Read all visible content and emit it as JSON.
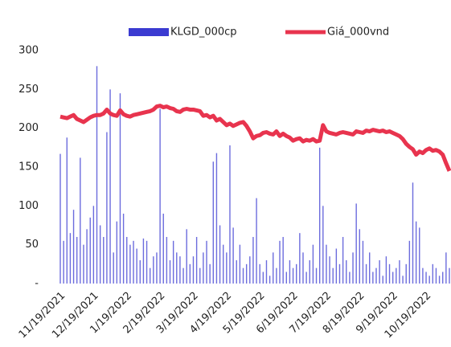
{
  "chart_data": {
    "type": "bar+line",
    "categories": [
      "11/19/2021",
      null,
      null,
      null,
      null,
      null,
      null,
      null,
      null,
      null,
      "12/19/2021",
      null,
      null,
      null,
      null,
      null,
      null,
      null,
      null,
      null,
      "1/19/2022",
      null,
      null,
      null,
      null,
      null,
      null,
      null,
      null,
      null,
      "2/19/2022",
      null,
      null,
      null,
      null,
      null,
      null,
      null,
      null,
      null,
      "3/19/2022",
      null,
      null,
      null,
      null,
      null,
      null,
      null,
      null,
      null,
      "4/19/2022",
      null,
      null,
      null,
      null,
      null,
      null,
      null,
      null,
      null,
      "5/19/2022",
      null,
      null,
      null,
      null,
      null,
      null,
      null,
      null,
      null,
      "6/19/2022",
      null,
      null,
      null,
      null,
      null,
      null,
      null,
      null,
      null,
      "7/19/2022",
      null,
      null,
      null,
      null,
      null,
      null,
      null,
      null,
      null,
      "8/19/2022",
      null,
      null,
      null,
      null,
      null,
      null,
      null,
      null,
      null,
      "9/19/2022",
      null,
      null,
      null,
      null,
      null,
      null,
      null,
      null,
      null,
      "10/19/2022",
      null,
      null,
      null,
      null,
      null,
      null,
      null
    ],
    "series": [
      {
        "name": "KLGD_000cp",
        "type": "bar",
        "color": "#3b3bd1",
        "values": [
          167,
          55,
          188,
          65,
          95,
          60,
          162,
          50,
          70,
          85,
          100,
          280,
          75,
          60,
          195,
          250,
          40,
          80,
          245,
          90,
          60,
          50,
          55,
          45,
          30,
          58,
          55,
          20,
          35,
          40,
          225,
          90,
          60,
          30,
          55,
          40,
          35,
          20,
          70,
          25,
          35,
          60,
          20,
          40,
          55,
          25,
          157,
          168,
          75,
          50,
          40,
          178,
          72,
          30,
          50,
          20,
          25,
          35,
          60,
          110,
          25,
          15,
          30,
          10,
          40,
          20,
          55,
          60,
          15,
          30,
          20,
          25,
          65,
          40,
          15,
          30,
          50,
          20,
          175,
          100,
          50,
          35,
          20,
          45,
          25,
          60,
          30,
          15,
          40,
          103,
          70,
          55,
          25,
          40,
          15,
          20,
          30,
          10,
          35,
          25,
          15,
          20,
          30,
          10,
          25,
          55,
          130,
          80,
          72,
          20,
          15,
          10,
          25,
          20,
          10,
          15,
          40,
          20
        ]
      },
      {
        "name": "Giá_000vnd",
        "type": "line",
        "color": "#e8344e",
        "values": [
          215,
          214,
          213,
          215,
          217,
          212,
          210,
          208,
          211,
          214,
          216,
          217,
          217,
          219,
          224,
          219,
          217,
          216,
          223,
          218,
          216,
          215,
          217,
          218,
          219,
          220,
          221,
          222,
          224,
          228,
          229,
          227,
          228,
          226,
          225,
          222,
          221,
          224,
          225,
          224,
          224,
          223,
          222,
          216,
          217,
          214,
          216,
          210,
          212,
          208,
          204,
          206,
          203,
          205,
          207,
          208,
          203,
          196,
          187,
          190,
          191,
          194,
          195,
          193,
          192,
          196,
          190,
          193,
          190,
          188,
          184,
          186,
          187,
          183,
          185,
          184,
          186,
          183,
          184,
          204,
          196,
          194,
          193,
          192,
          194,
          195,
          194,
          193,
          192,
          196,
          195,
          194,
          197,
          196,
          198,
          197,
          196,
          197,
          195,
          196,
          194,
          192,
          190,
          186,
          180,
          176,
          173,
          166,
          170,
          168,
          172,
          174,
          171,
          172,
          170,
          166,
          155,
          145
        ]
      }
    ],
    "ylim": [
      0,
      300
    ],
    "yticks": [
      {
        "value": 0,
        "label": "-"
      },
      50,
      100,
      150,
      200,
      250,
      300
    ],
    "legend": "top"
  }
}
